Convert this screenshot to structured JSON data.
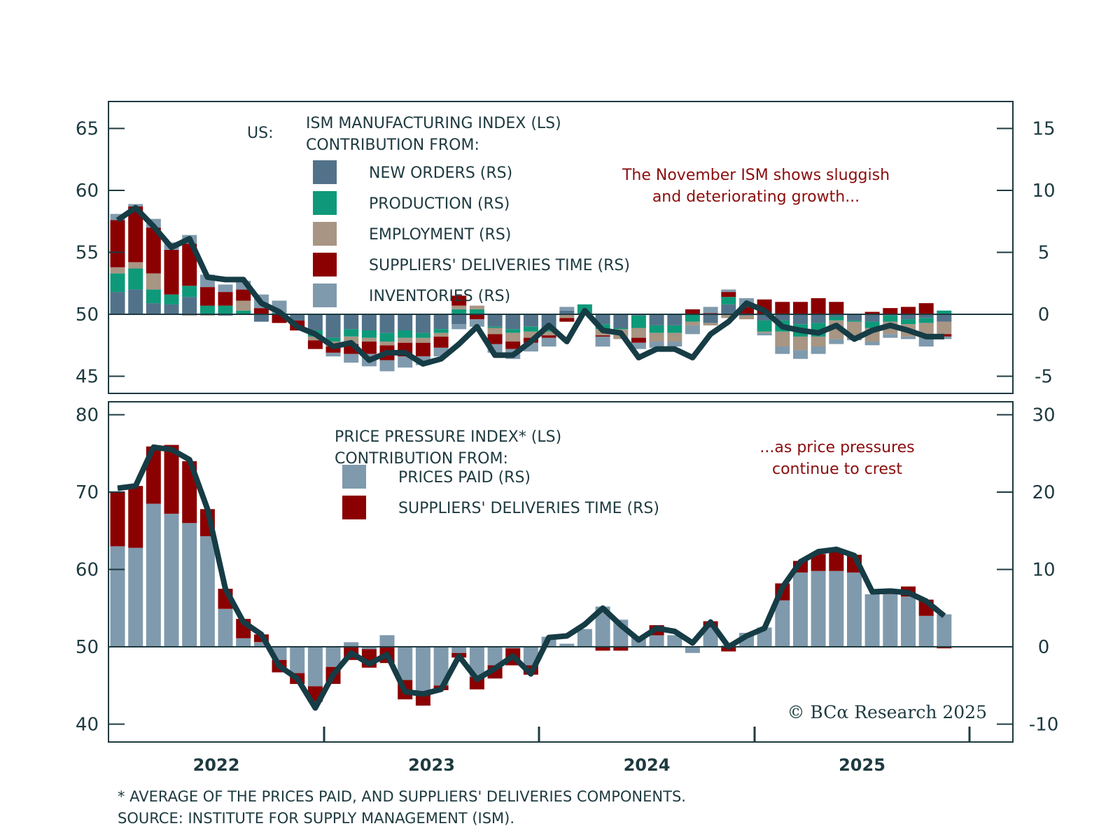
{
  "chart_data": [
    {
      "type": "bar",
      "panel": "top",
      "country_label": "US:",
      "title_line1": "ISM MANUFACTURING INDEX (LS)",
      "title_line2": "CONTRIBUTION FROM:",
      "annotation_line1": "The November ISM shows sluggish",
      "annotation_line2": "and deteriorating growth...",
      "left_axis": {
        "range": [
          44,
          66
        ],
        "ticks": [
          45,
          50,
          55,
          60,
          65
        ],
        "baseline": 50
      },
      "right_axis": {
        "range": [
          -6,
          16
        ],
        "ticks": [
          -5,
          0,
          5,
          10,
          15
        ]
      },
      "line_series": {
        "name": "ISM MANUFACTURING INDEX (LS)",
        "color": "#163c45",
        "values": [
          57.6,
          58.6,
          57.1,
          55.4,
          56.1,
          53.0,
          52.8,
          52.8,
          50.9,
          50.2,
          49.0,
          48.4,
          47.4,
          47.7,
          46.3,
          46.9,
          46.9,
          46.0,
          46.4,
          47.6,
          49.0,
          46.7,
          46.7,
          47.8,
          49.1,
          47.8,
          50.3,
          48.7,
          48.5,
          46.5,
          47.2,
          47.2,
          46.5,
          48.4,
          49.4,
          50.9,
          50.3,
          49.0,
          48.7,
          48.5,
          49.1,
          48.0,
          48.7,
          49.1,
          48.7,
          48.2,
          48.2
        ]
      },
      "bar_series": [
        {
          "name": "NEW ORDERS (RS)",
          "color": "#52728a",
          "values": [
            1.8,
            2.0,
            0.9,
            0.8,
            1.4,
            0.0,
            -0.1,
            0.0,
            -0.6,
            0.0,
            -0.5,
            -1.3,
            -1.9,
            -1.2,
            -1.3,
            -1.5,
            -1.3,
            -1.5,
            -1.2,
            -0.8,
            0.0,
            -1.0,
            -1.2,
            -1.0,
            -1.1,
            0.3,
            0.0,
            -0.8,
            -1.1,
            -0.1,
            -0.9,
            -0.9,
            0.0,
            -0.7,
            0.8,
            -0.1,
            -0.5,
            -0.5,
            -0.8,
            -0.7,
            -0.2,
            -0.5,
            -0.6,
            -0.1,
            -0.4,
            -0.3,
            -0.6
          ]
        },
        {
          "name": "PRODUCTION (RS)",
          "color": "#0e9a7a",
          "values": [
            1.5,
            1.7,
            1.1,
            0.8,
            0.9,
            0.7,
            0.7,
            0.3,
            0.0,
            0.1,
            0.0,
            -0.5,
            -0.3,
            -0.6,
            -0.6,
            -0.7,
            -0.6,
            -0.4,
            -0.3,
            0.4,
            0.4,
            -0.1,
            -0.3,
            -0.4,
            -0.3,
            0.0,
            0.8,
            -0.4,
            -0.1,
            -1.0,
            -0.6,
            -0.6,
            -0.6,
            0.0,
            0.6,
            0.0,
            -0.9,
            -0.9,
            -1.0,
            -1.1,
            -0.3,
            -0.1,
            -0.5,
            -0.5,
            -0.4,
            -0.4,
            0.3
          ]
        },
        {
          "name": "EMPLOYMENT (RS)",
          "color": "#a89583",
          "values": [
            0.5,
            0.5,
            1.3,
            0.0,
            -0.1,
            -0.1,
            0.0,
            0.8,
            0.0,
            0.0,
            0.0,
            -0.3,
            -0.4,
            -0.6,
            -0.3,
            -0.3,
            -0.4,
            -0.4,
            -0.3,
            0.3,
            0.3,
            -0.5,
            -0.7,
            -0.5,
            -0.3,
            -0.3,
            0.0,
            -0.5,
            -0.8,
            -0.8,
            -0.7,
            -0.7,
            -0.3,
            -0.2,
            -0.3,
            -0.3,
            -0.1,
            -1.2,
            -1.1,
            -0.8,
            -1.5,
            -1.3,
            -1.1,
            -1.0,
            -1.0,
            -1.2,
            -1.0
          ]
        },
        {
          "name": "SUPPLIERS' DELIVERIES TIME (RS)",
          "color": "#8b0000",
          "values": [
            3.8,
            4.5,
            3.7,
            3.6,
            3.4,
            1.5,
            1.1,
            0.9,
            0.5,
            -0.7,
            -0.8,
            -0.7,
            -0.5,
            -0.8,
            -1.0,
            -1.2,
            -1.1,
            -1.1,
            -0.9,
            0.8,
            -0.4,
            -0.8,
            -0.6,
            -0.4,
            -0.2,
            -0.3,
            0.0,
            -0.1,
            0.0,
            -0.4,
            0.0,
            0.0,
            0.4,
            0.1,
            0.4,
            0.6,
            1.2,
            1.0,
            1.0,
            1.3,
            1.0,
            0.0,
            0.2,
            0.5,
            0.6,
            0.9,
            -0.2
          ]
        },
        {
          "name": "INVENTORIES (RS)",
          "color": "#7f9aad",
          "values": [
            0.5,
            0.2,
            0.7,
            0.6,
            0.7,
            1.0,
            0.6,
            0.7,
            1.1,
            1.0,
            0.0,
            0.0,
            -0.3,
            -0.7,
            -1.0,
            -0.9,
            -0.9,
            -0.7,
            -0.7,
            -0.4,
            -0.6,
            -0.7,
            -0.8,
            -0.7,
            -0.7,
            0.3,
            0.0,
            -0.8,
            0.0,
            -0.5,
            -0.5,
            -0.4,
            -0.7,
            0.5,
            0.2,
            0.7,
            -0.2,
            -0.6,
            -0.7,
            -0.6,
            -0.4,
            -0.2,
            -0.3,
            -0.3,
            -0.2,
            -0.7,
            -0.2
          ]
        }
      ]
    },
    {
      "type": "bar",
      "panel": "bottom",
      "title_line1": "PRICE PRESSURE INDEX* (LS)",
      "title_line2": "CONTRIBUTION FROM:",
      "annotation_line1": "...as price pressures",
      "annotation_line2": "continue to crest",
      "left_axis": {
        "range": [
          39,
          82
        ],
        "ticks": [
          40,
          50,
          60,
          70,
          80
        ],
        "baseline": 50
      },
      "right_axis": {
        "range": [
          -11,
          32
        ],
        "ticks": [
          -10,
          0,
          10,
          20,
          30
        ]
      },
      "line_series": {
        "name": "PRICE PRESSURE INDEX* (LS)",
        "color": "#163c45",
        "values": [
          70.5,
          70.8,
          75.8,
          75.5,
          74.2,
          67.8,
          57.5,
          53.2,
          51.6,
          47.5,
          45.9,
          42.1,
          46.4,
          49.2,
          47.8,
          49.0,
          44.2,
          43.9,
          44.5,
          48.8,
          45.8,
          47.2,
          48.8,
          46.5,
          51.2,
          51.4,
          52.9,
          55.0,
          52.8,
          50.9,
          52.4,
          52.0,
          50.5,
          53.2,
          50.0,
          51.4,
          52.4,
          57.7,
          61.0,
          62.3,
          62.6,
          61.8,
          57.1,
          57.2,
          57.0,
          55.9,
          54.0
        ]
      },
      "bar_series": [
        {
          "name": "PRICES PAID (RS)",
          "color": "#7f9aad",
          "values": [
            13.0,
            12.8,
            18.5,
            17.2,
            16.0,
            14.3,
            4.9,
            1.1,
            0.6,
            -1.7,
            -3.4,
            -5.1,
            -2.6,
            0.6,
            -0.3,
            1.5,
            -4.3,
            -5.9,
            -5.0,
            -0.8,
            -3.9,
            -2.4,
            -0.2,
            -2.4,
            1.3,
            0.4,
            2.3,
            5.2,
            3.5,
            1.3,
            1.5,
            1.5,
            -0.8,
            2.5,
            0.2,
            1.8,
            2.5,
            6.0,
            9.6,
            9.8,
            9.8,
            9.6,
            6.8,
            6.8,
            6.5,
            4.0,
            4.2
          ]
        },
        {
          "name": "SUPPLIERS' DELIVERIES TIME (RS)",
          "color": "#8b0000",
          "values": [
            7.1,
            8.0,
            7.4,
            8.9,
            8.0,
            3.5,
            2.6,
            2.5,
            1.0,
            -1.6,
            -1.4,
            -2.0,
            -2.2,
            -1.7,
            -2.4,
            -2.1,
            -2.5,
            -1.7,
            -0.6,
            -0.6,
            -1.6,
            -1.7,
            -2.2,
            -1.2,
            0.0,
            0.0,
            0.0,
            -0.5,
            -0.5,
            0.0,
            1.3,
            0.0,
            0.0,
            0.8,
            -0.6,
            0.0,
            0.0,
            2.2,
            1.5,
            2.2,
            2.8,
            2.3,
            0.0,
            0.2,
            1.3,
            2.1,
            -0.2
          ]
        }
      ]
    }
  ],
  "x_axis": {
    "start_month": "2022-01",
    "months": 47,
    "year_labels": [
      "2022",
      "2023",
      "2024",
      "2025"
    ]
  },
  "footnote_line1": "* AVERAGE OF THE PRICES PAID, AND SUPPLIERS' DELIVERIES COMPONENTS.",
  "footnote_line2": "SOURCE: INSTITUTE FOR SUPPLY MANAGEMENT (ISM).",
  "copyright": "© BCα Research 2025",
  "colors": {
    "frame": "#1e3a40",
    "annotation": "#8b0d0d"
  }
}
